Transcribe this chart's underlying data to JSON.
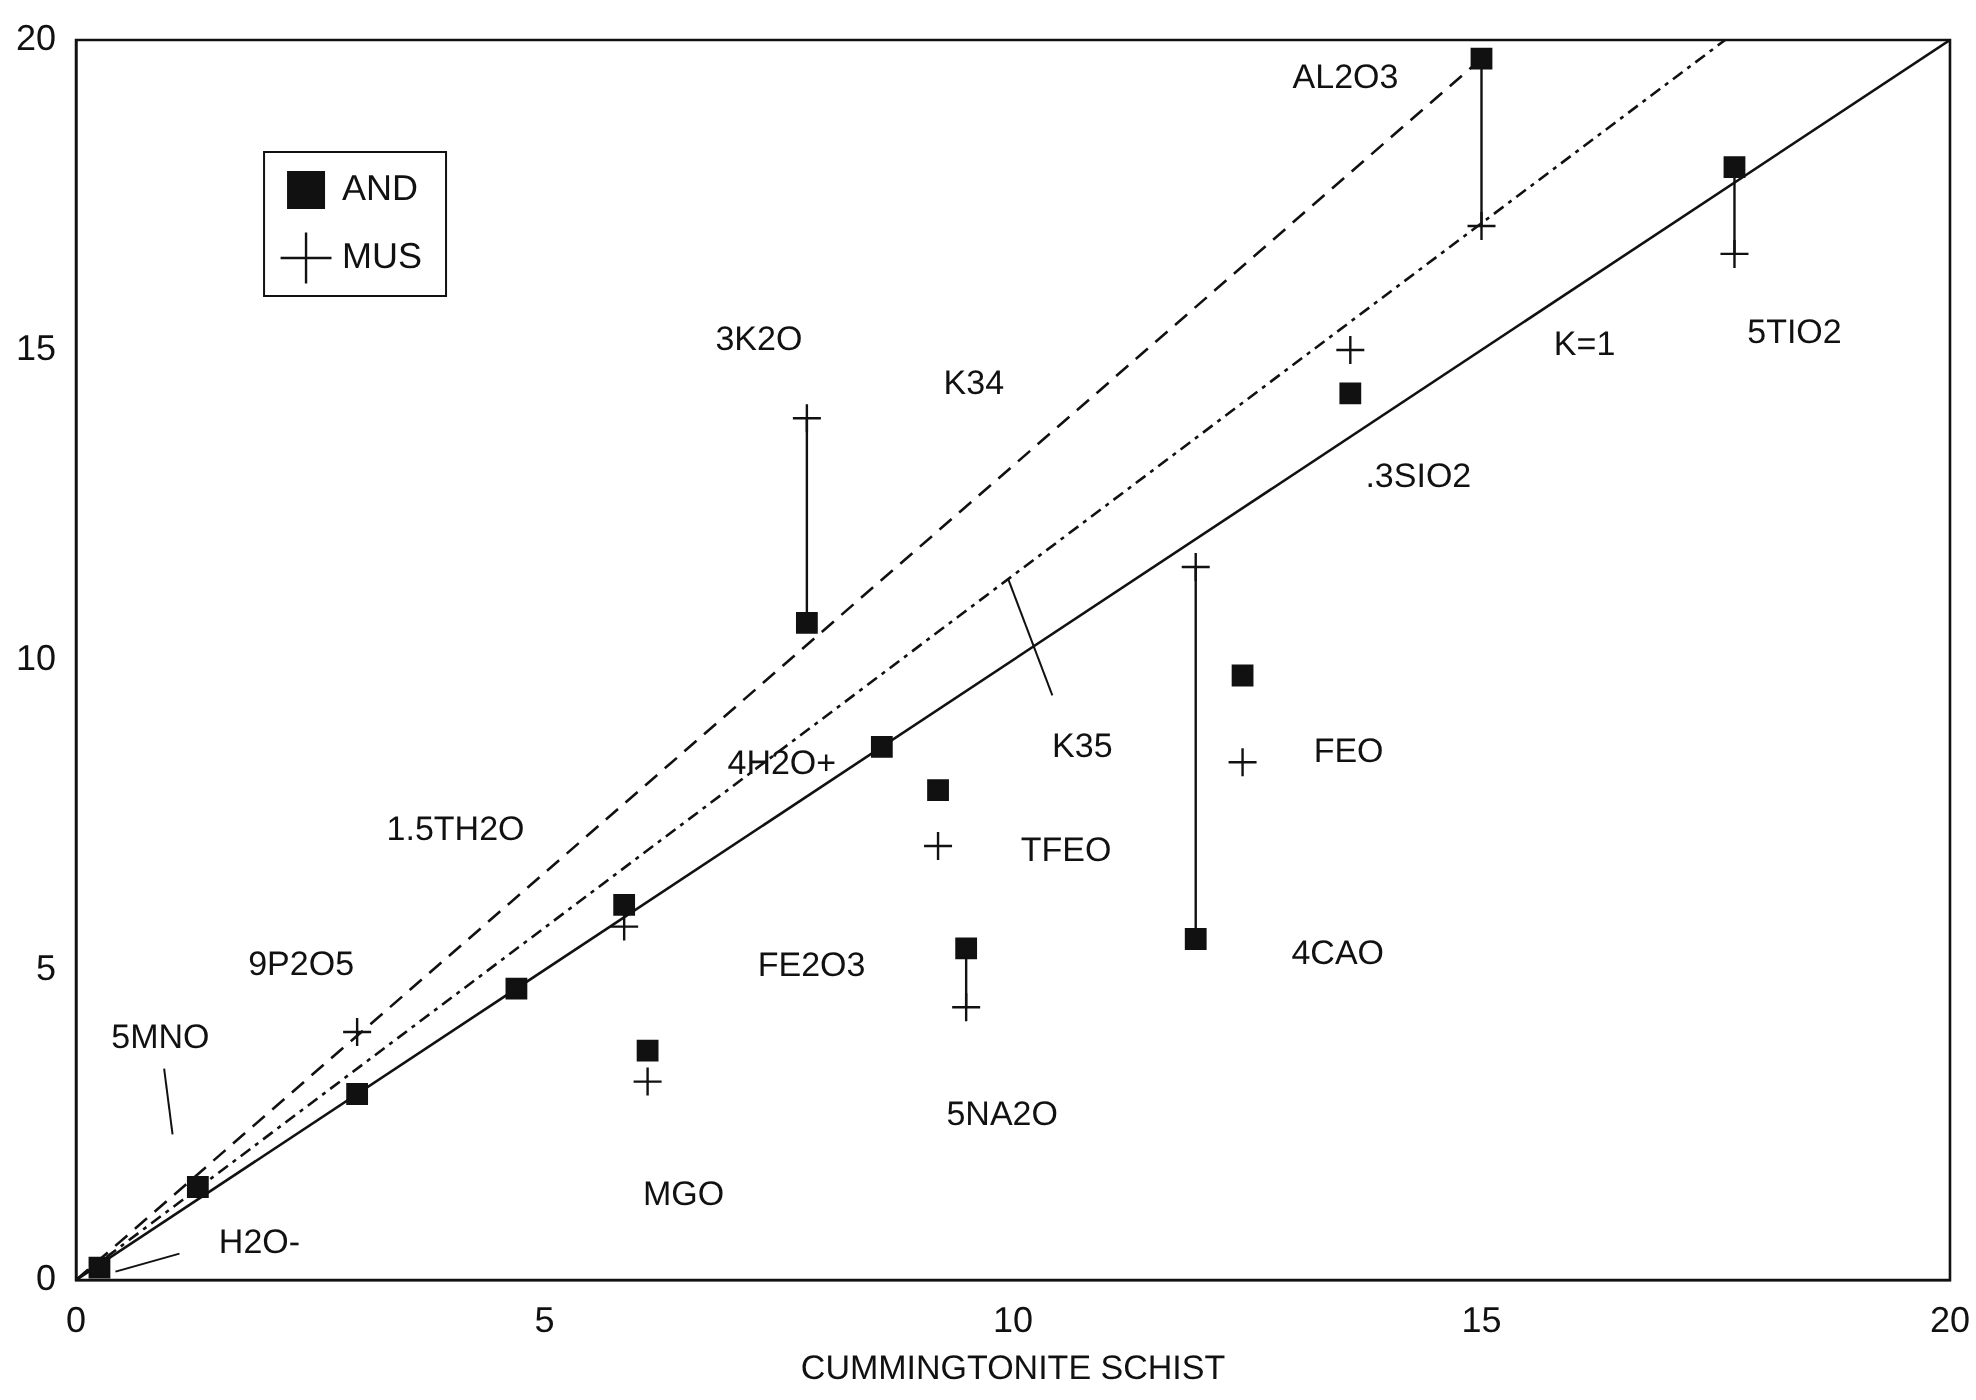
{
  "chart_data": {
    "type": "scatter",
    "xlabel": "CUMMINGTONITE SCHIST",
    "xlim": [
      0,
      20
    ],
    "ylim": [
      0,
      20
    ],
    "xticks": [
      0,
      5,
      10,
      15,
      20
    ],
    "yticks": [
      0,
      5,
      10,
      15,
      20
    ],
    "grid": false,
    "legend": "top left",
    "series": [
      {
        "name": "AND",
        "type": "scatter",
        "marker": "square",
        "color": "#111111",
        "x": [
          0.25,
          1.3,
          3.0,
          4.7,
          5.85,
          6.1,
          8.6,
          9.2,
          9.5,
          7.8,
          15.0,
          17.7,
          13.6,
          11.95,
          12.45
        ],
        "values": [
          0.2,
          1.5,
          3.0,
          4.7,
          6.05,
          3.7,
          8.6,
          7.9,
          5.35,
          10.6,
          19.7,
          17.95,
          14.3,
          5.5,
          9.75
        ],
        "errors": [
          null,
          null,
          null,
          null,
          null,
          null,
          null,
          null,
          [
            4.4,
            5.35
          ],
          [
            10.6,
            13.9
          ],
          [
            17.0,
            19.7
          ],
          [
            16.55,
            17.95
          ],
          null,
          [
            5.5,
            11.5
          ],
          null
        ]
      },
      {
        "name": "MUS",
        "type": "scatter",
        "marker": "cross",
        "color": "#111111",
        "x": [
          3.0,
          5.85,
          6.1,
          9.2,
          9.5,
          7.8,
          15.0,
          17.7,
          13.6,
          11.95,
          12.45
        ],
        "values": [
          4.0,
          5.7,
          3.2,
          7.0,
          4.4,
          13.9,
          17.0,
          16.55,
          15.0,
          11.5,
          8.35
        ]
      },
      {
        "type": "line",
        "line_style": "dashed",
        "color": "#111111",
        "x": [
          0,
          15.0
        ],
        "values": [
          0,
          19.7
        ]
      },
      {
        "type": "line",
        "line_style": "dotted",
        "color": "#111111",
        "x": [
          0,
          17.6
        ],
        "values": [
          0,
          20
        ]
      },
      {
        "type": "line",
        "line_style": "solid",
        "color": "#111111",
        "x": [
          0,
          20
        ],
        "values": [
          0,
          20
        ]
      }
    ],
    "annotations": [
      {
        "text": "3K2O",
        "x": 7.8,
        "y": 13.9
      },
      {
        "text": "K34",
        "x": 10.5,
        "y": 13.79
      },
      {
        "text": "AL2O3",
        "x": 15.0,
        "y": 19.7
      },
      {
        "text": "K=1",
        "x": 16.1,
        "y": 16.1
      },
      {
        "text": "5TIO2",
        "x": 17.7,
        "y": 16.55
      },
      {
        "text": ".3SIO2",
        "x": 13.6,
        "y": 14.3
      },
      {
        "text": "K35",
        "x": 9.95,
        "y": 11.3
      },
      {
        "text": "FEO",
        "x": 12.45,
        "y": 8.35
      },
      {
        "text": "TFEO",
        "x": 9.2,
        "y": 7.0
      },
      {
        "text": "4CAO",
        "x": 11.95,
        "y": 5.5
      },
      {
        "text": "5NA2O",
        "x": 9.5,
        "y": 4.4
      },
      "1.5TH2O",
      {
        "text": "9P2O5",
        "x": 3.0,
        "y": 4.0
      },
      "5MNO",
      {
        "text": "H2O-",
        "x": 0.25,
        "y": 0.2
      },
      {
        "text": "MGO",
        "x": 6.1,
        "y": 3.2
      },
      "FE2O3",
      {
        "text": "4H2O+",
        "x": 8.6,
        "y": 8.6
      }
    ]
  }
}
